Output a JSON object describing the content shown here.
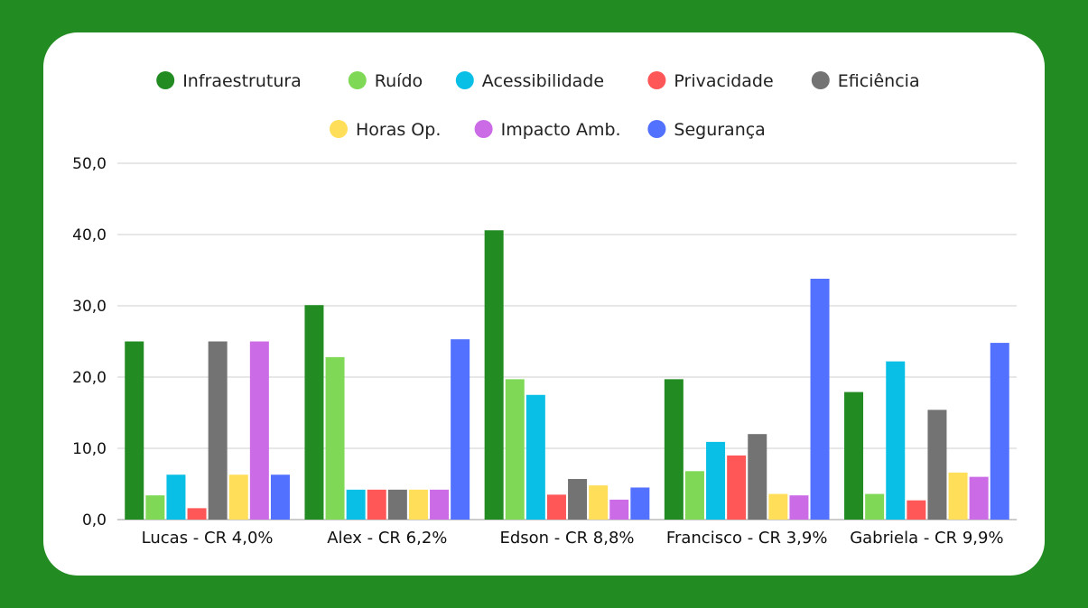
{
  "chart_data": {
    "type": "bar",
    "title": "",
    "xlabel": "",
    "ylabel": "",
    "ylim": [
      0,
      50
    ],
    "yticks": [
      "0,0",
      "10,0",
      "20,0",
      "30,0",
      "40,0",
      "50,0"
    ],
    "grid": true,
    "legend_position": "top",
    "categories": [
      "Lucas - CR 4,0%",
      "Alex - CR 6,2%",
      "Edson - CR 8,8%",
      "Francisco - CR 3,9%",
      "Gabriela - CR 9,9%"
    ],
    "series": [
      {
        "name": "Infraestrutura",
        "color": "#228b22",
        "values": [
          25.0,
          30.1,
          40.6,
          19.7,
          17.9
        ]
      },
      {
        "name": "Ruído",
        "color": "#7fd957",
        "values": [
          3.4,
          22.8,
          19.7,
          6.8,
          3.6
        ]
      },
      {
        "name": "Acessibilidade",
        "color": "#0abfe5",
        "values": [
          6.3,
          4.2,
          17.5,
          10.9,
          22.2
        ]
      },
      {
        "name": "Privacidade",
        "color": "#ff5757",
        "values": [
          1.6,
          4.2,
          3.5,
          9.0,
          2.7
        ]
      },
      {
        "name": "Eficiência",
        "color": "#737373",
        "values": [
          25.0,
          4.2,
          5.7,
          12.0,
          15.4
        ]
      },
      {
        "name": "Horas Op.",
        "color": "#ffde59",
        "values": [
          6.3,
          4.2,
          4.8,
          3.6,
          6.6
        ]
      },
      {
        "name": "Impacto Amb.",
        "color": "#cb6ce6",
        "values": [
          25.0,
          4.2,
          2.8,
          3.4,
          6.0
        ]
      },
      {
        "name": "Segurança",
        "color": "#5271ff",
        "values": [
          6.3,
          25.3,
          4.5,
          33.8,
          24.8
        ]
      }
    ]
  }
}
